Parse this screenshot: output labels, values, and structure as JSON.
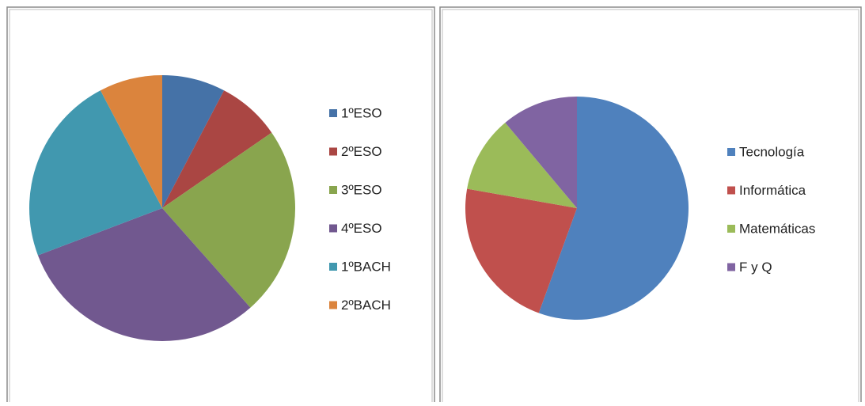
{
  "chart_data": [
    {
      "type": "pie",
      "categories": [
        "1ºESO",
        "2ºESO",
        "3ºESO",
        "4ºESO",
        "1ºBACH",
        "2ºBACH"
      ],
      "values": [
        1,
        1,
        3,
        4,
        3,
        1
      ],
      "colors": [
        "#4572a7",
        "#aa4643",
        "#89a54e",
        "#71588f",
        "#4198af",
        "#db843d"
      ]
    },
    {
      "type": "pie",
      "categories": [
        "Tecnología",
        "Informática",
        "Matemáticas",
        "F y Q"
      ],
      "values": [
        5,
        2,
        1,
        1
      ],
      "colors": [
        "#4f81bd",
        "#c0504d",
        "#9bbb59",
        "#8064a2"
      ]
    }
  ]
}
